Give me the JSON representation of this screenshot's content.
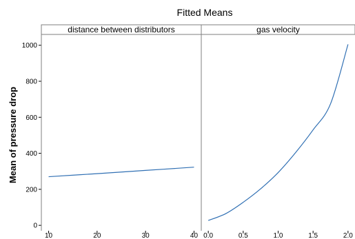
{
  "chart_data": {
    "type": "line",
    "title": "Fitted Means",
    "ylabel": "Mean of pressure drop",
    "ylim": [
      -30,
      1060
    ],
    "yticks": [
      0,
      200,
      400,
      600,
      800,
      1000
    ],
    "panels": [
      {
        "label": "distance between distributors",
        "xlim": [
          8.5,
          41.5
        ],
        "xticks": [
          10,
          20,
          30,
          40
        ],
        "x": [
          10,
          20,
          30,
          40
        ],
        "y": [
          270,
          287,
          305,
          323
        ]
      },
      {
        "label": "gas velocity",
        "xlim": [
          -0.1,
          2.1
        ],
        "xticks": [
          "0.0",
          "0.5",
          "1.0",
          "1.5",
          "2.0"
        ],
        "x": [
          0.0,
          0.25,
          0.5,
          0.75,
          1.0,
          1.25,
          1.5,
          1.75,
          2.0
        ],
        "y": [
          27,
          65,
          128,
          203,
          293,
          404,
          530,
          675,
          1005
        ]
      }
    ],
    "colors": {
      "line": "#2f6fb3",
      "frame": "#7f7f7f"
    }
  }
}
